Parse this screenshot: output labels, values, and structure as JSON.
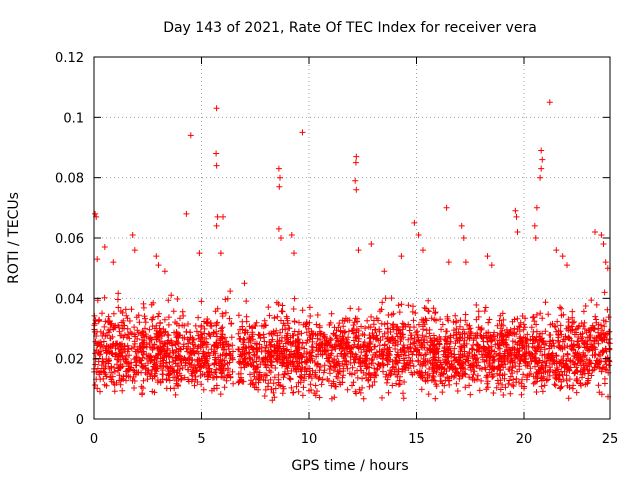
{
  "chart_data": {
    "type": "scatter",
    "title": "Day 143 of 2021, Rate Of TEC Index for receiver vera",
    "xlabel": "GPS time / hours",
    "ylabel": "ROTI / TECUs",
    "xlim": [
      0,
      24
    ],
    "ylim": [
      0,
      0.12
    ],
    "xticks": [
      0,
      5,
      10,
      15,
      20,
      25
    ],
    "xtick_labels": [
      "0",
      "5",
      "10",
      "15",
      "20",
      "25"
    ],
    "yticks": [
      0,
      0.02,
      0.04,
      0.06,
      0.08,
      0.1,
      0.12
    ],
    "ytick_labels": [
      "0",
      "0.02",
      "0.04",
      "0.06",
      "0.08",
      "0.1",
      "0.12"
    ],
    "grid": true,
    "marker": "plus",
    "color": "#ff0000",
    "data_gaps_hours": [
      [
        6.5,
        6.7
      ]
    ],
    "dense_band": {
      "x_range": [
        0,
        24
      ],
      "y_typical": [
        0.005,
        0.04
      ]
    },
    "outliers": [
      {
        "x": 0.05,
        "y": 0.068
      },
      {
        "x": 0.1,
        "y": 0.067
      },
      {
        "x": 0.15,
        "y": 0.053
      },
      {
        "x": 0.5,
        "y": 0.057
      },
      {
        "x": 0.9,
        "y": 0.052
      },
      {
        "x": 1.8,
        "y": 0.061
      },
      {
        "x": 1.9,
        "y": 0.056
      },
      {
        "x": 2.9,
        "y": 0.054
      },
      {
        "x": 3.0,
        "y": 0.051
      },
      {
        "x": 3.3,
        "y": 0.049
      },
      {
        "x": 4.3,
        "y": 0.068
      },
      {
        "x": 4.5,
        "y": 0.094
      },
      {
        "x": 4.9,
        "y": 0.055
      },
      {
        "x": 5.7,
        "y": 0.103
      },
      {
        "x": 5.68,
        "y": 0.088
      },
      {
        "x": 5.7,
        "y": 0.084
      },
      {
        "x": 5.75,
        "y": 0.067
      },
      {
        "x": 5.7,
        "y": 0.064
      },
      {
        "x": 6.0,
        "y": 0.067
      },
      {
        "x": 5.9,
        "y": 0.055
      },
      {
        "x": 7.0,
        "y": 0.045
      },
      {
        "x": 8.6,
        "y": 0.083
      },
      {
        "x": 8.65,
        "y": 0.08
      },
      {
        "x": 8.62,
        "y": 0.077
      },
      {
        "x": 8.6,
        "y": 0.063
      },
      {
        "x": 8.7,
        "y": 0.06
      },
      {
        "x": 9.2,
        "y": 0.061
      },
      {
        "x": 9.3,
        "y": 0.055
      },
      {
        "x": 9.7,
        "y": 0.095
      },
      {
        "x": 12.2,
        "y": 0.087
      },
      {
        "x": 12.18,
        "y": 0.085
      },
      {
        "x": 12.15,
        "y": 0.079
      },
      {
        "x": 12.2,
        "y": 0.076
      },
      {
        "x": 12.3,
        "y": 0.056
      },
      {
        "x": 12.9,
        "y": 0.058
      },
      {
        "x": 13.5,
        "y": 0.049
      },
      {
        "x": 14.3,
        "y": 0.054
      },
      {
        "x": 14.9,
        "y": 0.065
      },
      {
        "x": 15.1,
        "y": 0.061
      },
      {
        "x": 15.3,
        "y": 0.056
      },
      {
        "x": 16.4,
        "y": 0.07
      },
      {
        "x": 16.5,
        "y": 0.052
      },
      {
        "x": 17.1,
        "y": 0.064
      },
      {
        "x": 17.2,
        "y": 0.06
      },
      {
        "x": 17.3,
        "y": 0.052
      },
      {
        "x": 18.3,
        "y": 0.054
      },
      {
        "x": 18.5,
        "y": 0.051
      },
      {
        "x": 19.6,
        "y": 0.069
      },
      {
        "x": 19.65,
        "y": 0.067
      },
      {
        "x": 19.7,
        "y": 0.062
      },
      {
        "x": 20.6,
        "y": 0.07
      },
      {
        "x": 20.5,
        "y": 0.064
      },
      {
        "x": 20.55,
        "y": 0.06
      },
      {
        "x": 20.8,
        "y": 0.089
      },
      {
        "x": 20.85,
        "y": 0.086
      },
      {
        "x": 20.8,
        "y": 0.083
      },
      {
        "x": 20.75,
        "y": 0.08
      },
      {
        "x": 21.2,
        "y": 0.105
      },
      {
        "x": 21.5,
        "y": 0.056
      },
      {
        "x": 21.8,
        "y": 0.054
      },
      {
        "x": 22.0,
        "y": 0.051
      },
      {
        "x": 23.3,
        "y": 0.062
      },
      {
        "x": 23.6,
        "y": 0.061
      },
      {
        "x": 23.7,
        "y": 0.058
      },
      {
        "x": 23.8,
        "y": 0.052
      },
      {
        "x": 23.9,
        "y": 0.05
      }
    ]
  }
}
